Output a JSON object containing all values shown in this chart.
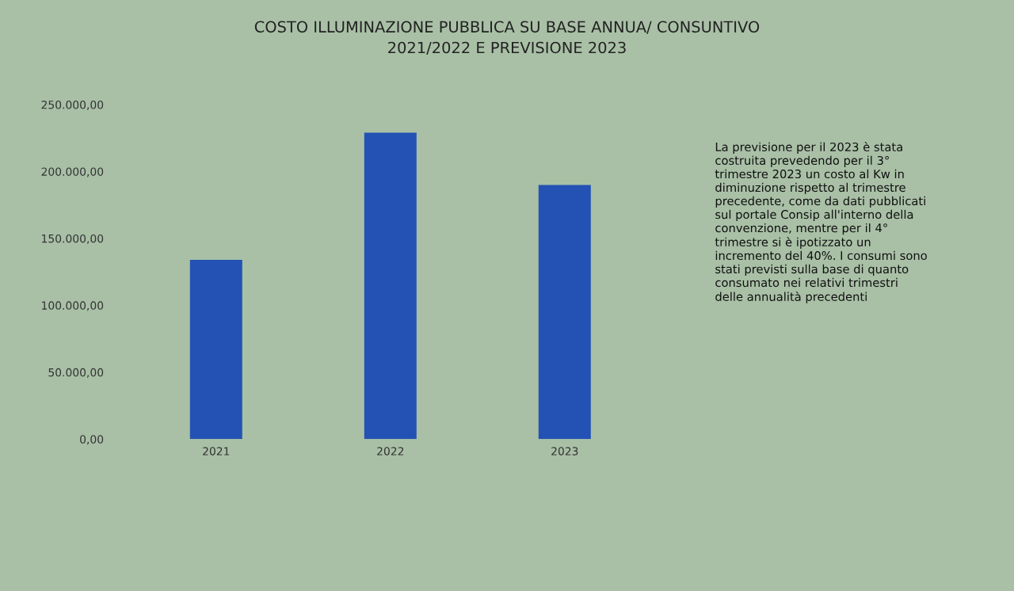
{
  "chart_data": {
    "type": "bar",
    "title": "COSTO ILLUMINAZIONE PUBBLICA SU BASE ANNUA/ CONSUNTIVO\n2021/2022 E PREVISIONE 2023",
    "categories": [
      "2021",
      "2022",
      "2023"
    ],
    "values": [
      134000,
      229000,
      190000
    ],
    "color": "#2352b4",
    "ylim": [
      0,
      250000
    ],
    "yticks": [
      {
        "value": 0,
        "label": "0,00"
      },
      {
        "value": 50000,
        "label": "50.000,00"
      },
      {
        "value": 100000,
        "label": "100.000,00"
      },
      {
        "value": 150000,
        "label": "150.000,00"
      },
      {
        "value": 200000,
        "label": "200.000,00"
      },
      {
        "value": 250000,
        "label": "250.000,00"
      }
    ],
    "grid": false,
    "annotations": [
      "La previsione per il 2023 è stata\ncostruita prevedendo per il 3°\ntrimestre 2023 un costo al Kw in\ndiminuzione rispetto al trimestre\nprecedente, come da dati pubblicati\nsul portale Consip all'interno della\nconvenzione, mentre per il 4°\ntrimestre si è ipotizzato un\nincremento del 40%. I consumi sono\nstati previsti sulla base di quanto\nconsumato nei relativi trimestri\ndelle annualità precedenti"
    ]
  }
}
